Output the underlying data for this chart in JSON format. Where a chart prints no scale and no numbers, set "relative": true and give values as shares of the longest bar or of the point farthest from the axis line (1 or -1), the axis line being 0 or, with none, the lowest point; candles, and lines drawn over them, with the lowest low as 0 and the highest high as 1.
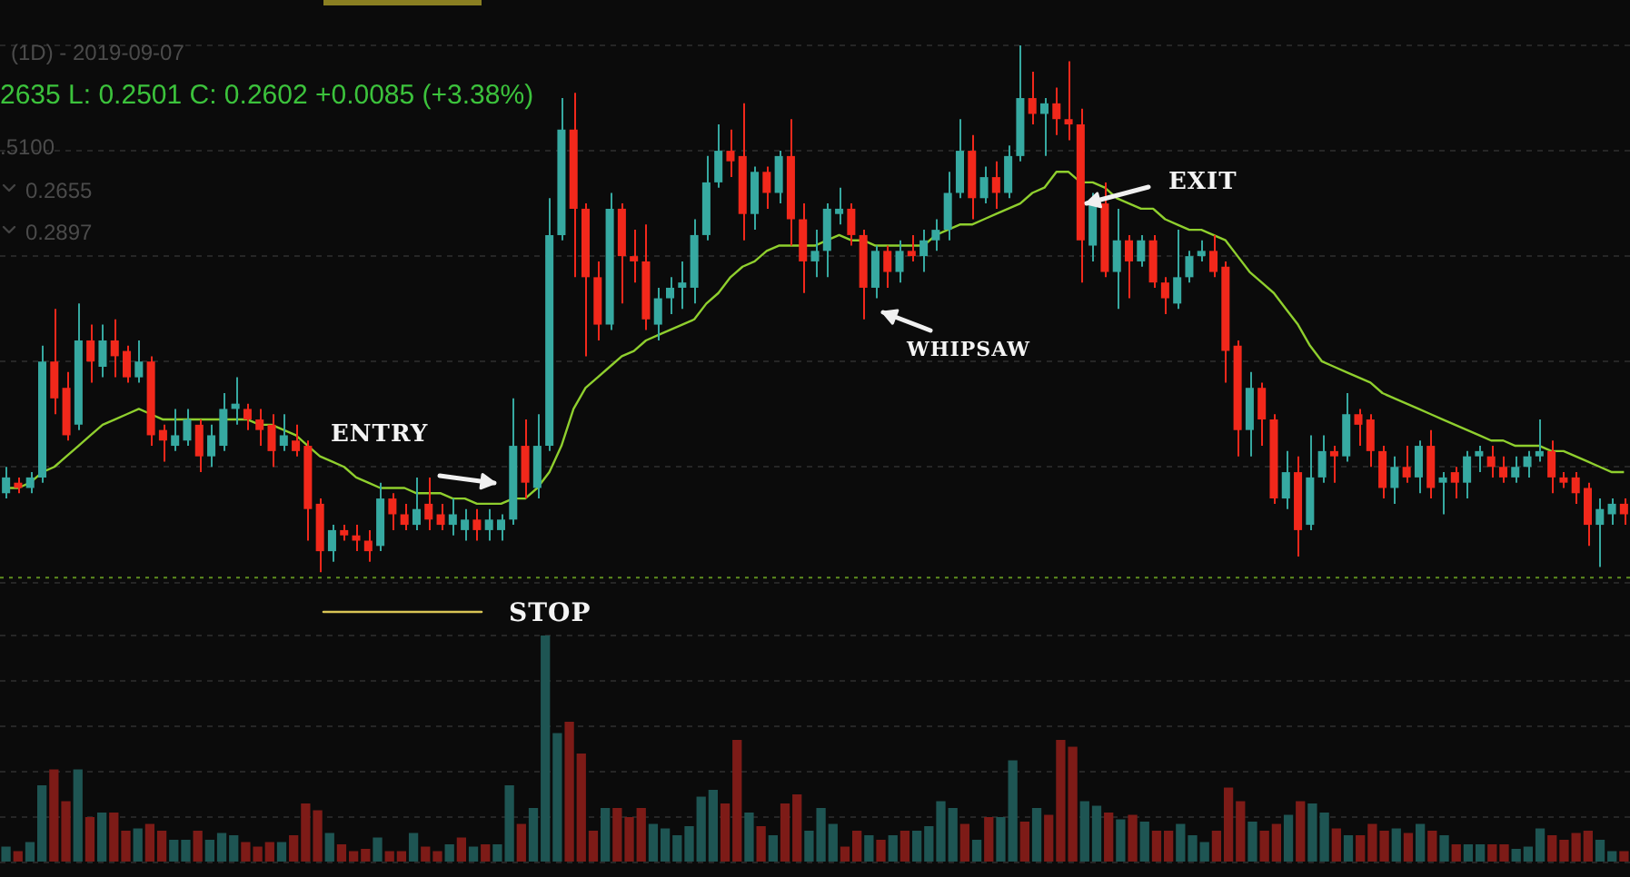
{
  "chart_data": [
    {
      "type": "candlestick",
      "title": "(1D) - 2019-09-07",
      "subtitle": "2635 L: 0.2501 C: 0.2602 +0.0085 (+3.38%)",
      "annotations": [
        ".5100",
        "0.2655",
        "0.2897",
        "ENTRY",
        "WHIPSAW",
        "EXIT",
        "STOP"
      ],
      "relative": true,
      "grid": "y",
      "tick_labels": false,
      "categories": [
        null,
        null,
        null,
        null,
        null,
        null,
        null,
        null,
        null,
        null,
        null,
        null,
        null,
        null,
        null,
        null,
        null,
        null,
        null,
        null,
        null,
        null,
        null,
        null,
        null,
        null,
        null,
        null,
        null,
        null,
        null,
        null,
        null,
        null,
        null,
        null,
        null,
        null,
        null,
        null,
        null,
        null,
        null,
        null,
        null,
        null,
        null,
        null,
        null,
        null,
        null,
        null,
        null,
        null,
        null,
        null,
        null,
        null,
        null,
        null,
        null,
        null,
        null,
        null,
        null,
        null,
        null,
        null,
        null,
        null,
        null,
        null,
        null,
        null,
        null,
        null,
        null,
        null,
        null,
        null,
        null,
        null,
        null,
        null,
        null,
        null,
        null,
        null,
        null,
        null,
        null,
        null,
        null,
        null,
        null,
        null,
        null,
        null,
        null,
        null,
        null,
        null,
        null,
        null,
        null,
        null,
        null,
        null,
        null,
        null,
        null,
        null,
        null,
        null,
        null,
        null,
        null,
        null,
        null,
        null,
        null,
        null,
        null,
        null,
        null,
        null,
        null,
        null,
        null,
        null,
        null,
        null,
        null,
        null,
        null
      ],
      "ohlc": [
        [
          0.15,
          0.2,
          0.14,
          0.18
        ],
        [
          0.17,
          0.18,
          0.15,
          0.16
        ],
        [
          0.16,
          0.19,
          0.15,
          0.18
        ],
        [
          0.18,
          0.43,
          0.17,
          0.4
        ],
        [
          0.4,
          0.5,
          0.3,
          0.33
        ],
        [
          0.35,
          0.38,
          0.25,
          0.26
        ],
        [
          0.28,
          0.51,
          0.27,
          0.44
        ],
        [
          0.44,
          0.47,
          0.36,
          0.4
        ],
        [
          0.39,
          0.47,
          0.37,
          0.44
        ],
        [
          0.44,
          0.48,
          0.37,
          0.41
        ],
        [
          0.42,
          0.43,
          0.36,
          0.37
        ],
        [
          0.37,
          0.44,
          0.36,
          0.4
        ],
        [
          0.4,
          0.41,
          0.24,
          0.26
        ],
        [
          0.27,
          0.28,
          0.21,
          0.25
        ],
        [
          0.24,
          0.31,
          0.23,
          0.26
        ],
        [
          0.25,
          0.31,
          0.24,
          0.29
        ],
        [
          0.28,
          0.29,
          0.19,
          0.22
        ],
        [
          0.22,
          0.28,
          0.2,
          0.26
        ],
        [
          0.24,
          0.34,
          0.23,
          0.31
        ],
        [
          0.31,
          0.37,
          0.28,
          0.32
        ],
        [
          0.31,
          0.32,
          0.27,
          0.29
        ],
        [
          0.29,
          0.31,
          0.24,
          0.27
        ],
        [
          0.28,
          0.3,
          0.2,
          0.23
        ],
        [
          0.24,
          0.3,
          0.23,
          0.26
        ],
        [
          0.25,
          0.28,
          0.22,
          0.23
        ],
        [
          0.24,
          0.25,
          0.06,
          0.12
        ],
        [
          0.13,
          0.14,
          0,
          0.04
        ],
        [
          0.04,
          0.09,
          0.02,
          0.08
        ],
        [
          0.08,
          0.09,
          0.06,
          0.07
        ],
        [
          0.07,
          0.09,
          0.04,
          0.06
        ],
        [
          0.06,
          0.08,
          0.02,
          0.04
        ],
        [
          0.05,
          0.17,
          0.04,
          0.14
        ],
        [
          0.14,
          0.15,
          0.08,
          0.11
        ],
        [
          0.11,
          0.13,
          0.08,
          0.09
        ],
        [
          0.09,
          0.18,
          0.08,
          0.12
        ],
        [
          0.13,
          0.18,
          0.08,
          0.1
        ],
        [
          0.11,
          0.13,
          0.08,
          0.09
        ],
        [
          0.09,
          0.14,
          0.07,
          0.11
        ],
        [
          0.08,
          0.12,
          0.06,
          0.1
        ],
        [
          0.1,
          0.12,
          0.06,
          0.08
        ],
        [
          0.08,
          0.12,
          0.06,
          0.1
        ],
        [
          0.08,
          0.11,
          0.06,
          0.1
        ],
        [
          0.1,
          0.33,
          0.09,
          0.24
        ],
        [
          0.24,
          0.29,
          0.14,
          0.17
        ],
        [
          0.16,
          0.3,
          0.14,
          0.24
        ],
        [
          0.24,
          0.71,
          0.23,
          0.64
        ],
        [
          0.64,
          0.9,
          0.63,
          0.84
        ],
        [
          0.84,
          0.91,
          0.56,
          0.69
        ],
        [
          0.69,
          0.7,
          0.41,
          0.56
        ],
        [
          0.56,
          0.59,
          0.44,
          0.47
        ],
        [
          0.47,
          0.72,
          0.46,
          0.69
        ],
        [
          0.69,
          0.7,
          0.51,
          0.6
        ],
        [
          0.6,
          0.65,
          0.55,
          0.59
        ],
        [
          0.59,
          0.66,
          0.46,
          0.48
        ],
        [
          0.47,
          0.54,
          0.44,
          0.52
        ],
        [
          0.52,
          0.56,
          0.49,
          0.54
        ],
        [
          0.54,
          0.59,
          0.5,
          0.55
        ],
        [
          0.54,
          0.67,
          0.51,
          0.64
        ],
        [
          0.64,
          0.79,
          0.63,
          0.74
        ],
        [
          0.74,
          0.85,
          0.73,
          0.8
        ],
        [
          0.8,
          0.84,
          0.75,
          0.78
        ],
        [
          0.79,
          0.89,
          0.63,
          0.68
        ],
        [
          0.68,
          0.77,
          0.65,
          0.76
        ],
        [
          0.76,
          0.77,
          0.69,
          0.72
        ],
        [
          0.72,
          0.8,
          0.7,
          0.79
        ],
        [
          0.79,
          0.86,
          0.62,
          0.67
        ],
        [
          0.67,
          0.7,
          0.53,
          0.59
        ],
        [
          0.59,
          0.65,
          0.56,
          0.61
        ],
        [
          0.61,
          0.7,
          0.56,
          0.69
        ],
        [
          0.68,
          0.73,
          0.66,
          0.69
        ],
        [
          0.69,
          0.7,
          0.62,
          0.64
        ],
        [
          0.64,
          0.65,
          0.48,
          0.54
        ],
        [
          0.54,
          0.62,
          0.52,
          0.61
        ],
        [
          0.61,
          0.62,
          0.54,
          0.57
        ],
        [
          0.57,
          0.63,
          0.55,
          0.61
        ],
        [
          0.61,
          0.64,
          0.59,
          0.6
        ],
        [
          0.6,
          0.65,
          0.57,
          0.63
        ],
        [
          0.63,
          0.67,
          0.61,
          0.65
        ],
        [
          0.65,
          0.76,
          0.63,
          0.72
        ],
        [
          0.72,
          0.86,
          0.71,
          0.8
        ],
        [
          0.8,
          0.83,
          0.67,
          0.71
        ],
        [
          0.71,
          0.77,
          0.7,
          0.75
        ],
        [
          0.75,
          0.78,
          0.69,
          0.72
        ],
        [
          0.72,
          0.81,
          0.71,
          0.79
        ],
        [
          0.79,
          1,
          0.78,
          0.9
        ],
        [
          0.9,
          0.95,
          0.85,
          0.87
        ],
        [
          0.87,
          0.9,
          0.79,
          0.89
        ],
        [
          0.89,
          0.92,
          0.83,
          0.86
        ],
        [
          0.86,
          0.97,
          0.82,
          0.85
        ],
        [
          0.85,
          0.88,
          0.55,
          0.63
        ],
        [
          0.62,
          0.72,
          0.59,
          0.7
        ],
        [
          0.7,
          0.74,
          0.56,
          0.57
        ],
        [
          0.57,
          0.69,
          0.5,
          0.63
        ],
        [
          0.63,
          0.64,
          0.52,
          0.59
        ],
        [
          0.59,
          0.64,
          0.58,
          0.63
        ],
        [
          0.63,
          0.64,
          0.54,
          0.55
        ],
        [
          0.55,
          0.56,
          0.49,
          0.52
        ],
        [
          0.51,
          0.65,
          0.5,
          0.56
        ],
        [
          0.56,
          0.61,
          0.55,
          0.6
        ],
        [
          0.6,
          0.63,
          0.59,
          0.61
        ],
        [
          0.61,
          0.64,
          0.56,
          0.57
        ],
        [
          0.58,
          0.59,
          0.36,
          0.42
        ],
        [
          0.43,
          0.44,
          0.22,
          0.27
        ],
        [
          0.27,
          0.38,
          0.22,
          0.35
        ],
        [
          0.35,
          0.36,
          0.24,
          0.29
        ],
        [
          0.29,
          0.3,
          0.13,
          0.14
        ],
        [
          0.14,
          0.23,
          0.12,
          0.19
        ],
        [
          0.19,
          0.22,
          0.03,
          0.08
        ],
        [
          0.09,
          0.26,
          0.08,
          0.18
        ],
        [
          0.18,
          0.26,
          0.17,
          0.23
        ],
        [
          0.23,
          0.24,
          0.17,
          0.22
        ],
        [
          0.22,
          0.34,
          0.21,
          0.3
        ],
        [
          0.3,
          0.31,
          0.24,
          0.28
        ],
        [
          0.29,
          0.3,
          0.2,
          0.23
        ],
        [
          0.23,
          0.24,
          0.14,
          0.16
        ],
        [
          0.16,
          0.22,
          0.13,
          0.2
        ],
        [
          0.2,
          0.24,
          0.17,
          0.18
        ],
        [
          0.18,
          0.25,
          0.15,
          0.24
        ],
        [
          0.24,
          0.27,
          0.14,
          0.16
        ],
        [
          0.17,
          0.19,
          0.11,
          0.18
        ],
        [
          0.19,
          0.2,
          0.14,
          0.17
        ],
        [
          0.17,
          0.23,
          0.14,
          0.22
        ],
        [
          0.22,
          0.24,
          0.19,
          0.23
        ],
        [
          0.22,
          0.24,
          0.18,
          0.2
        ],
        [
          0.2,
          0.22,
          0.17,
          0.18
        ],
        [
          0.18,
          0.22,
          0.17,
          0.2
        ],
        [
          0.2,
          0.23,
          0.18,
          0.22
        ],
        [
          0.22,
          0.29,
          0.21,
          0.23
        ],
        [
          0.23,
          0.25,
          0.15,
          0.18
        ],
        [
          0.18,
          0.19,
          0.16,
          0.17
        ],
        [
          0.18,
          0.19,
          0.13,
          0.15
        ],
        [
          0.16,
          0.17,
          0.05,
          0.09
        ],
        [
          0.09,
          0.14,
          0.01,
          0.12
        ],
        [
          0.11,
          0.14,
          0.09,
          0.13
        ],
        [
          0.13,
          0.14,
          0.09,
          0.11
        ]
      ],
      "colors": [
        "#36a9a1",
        "#f2281b",
        "#36a9a1",
        "#36a9a1",
        "#f2281b",
        "#f2281b",
        "#36a9a1",
        "#f2281b",
        "#36a9a1",
        "#f2281b",
        "#f2281b",
        "#36a9a1",
        "#f2281b",
        "#f2281b",
        "#36a9a1",
        "#36a9a1",
        "#f2281b",
        "#36a9a1",
        "#36a9a1",
        "#36a9a1",
        "#f2281b",
        "#f2281b",
        "#f2281b",
        "#36a9a1",
        "#f2281b",
        "#f2281b",
        "#f2281b",
        "#36a9a1",
        "#f2281b",
        "#f2281b",
        "#f2281b",
        "#36a9a1",
        "#f2281b",
        "#f2281b",
        "#36a9a1",
        "#f2281b",
        "#f2281b",
        "#36a9a1",
        "#36a9a1",
        "#f2281b",
        "#36a9a1",
        "#36a9a1",
        "#36a9a1",
        "#f2281b",
        "#36a9a1",
        "#36a9a1",
        "#36a9a1",
        "#f2281b",
        "#f2281b",
        "#f2281b",
        "#36a9a1",
        "#f2281b",
        "#f2281b",
        "#f2281b",
        "#36a9a1",
        "#36a9a1",
        "#36a9a1",
        "#36a9a1",
        "#36a9a1",
        "#36a9a1",
        "#f2281b",
        "#f2281b",
        "#36a9a1",
        "#f2281b",
        "#36a9a1",
        "#f2281b",
        "#f2281b",
        "#36a9a1",
        "#36a9a1",
        "#36a9a1",
        "#f2281b",
        "#f2281b",
        "#36a9a1",
        "#f2281b",
        "#36a9a1",
        "#f2281b",
        "#36a9a1",
        "#36a9a1",
        "#36a9a1",
        "#36a9a1",
        "#f2281b",
        "#36a9a1",
        "#f2281b",
        "#36a9a1",
        "#36a9a1",
        "#f2281b",
        "#36a9a1",
        "#f2281b",
        "#f2281b",
        "#f2281b",
        "#36a9a1",
        "#f2281b",
        "#36a9a1",
        "#f2281b",
        "#36a9a1",
        "#f2281b",
        "#f2281b",
        "#36a9a1",
        "#36a9a1",
        "#36a9a1",
        "#f2281b",
        "#f2281b",
        "#f2281b",
        "#36a9a1",
        "#f2281b",
        "#f2281b",
        "#36a9a1",
        "#f2281b",
        "#36a9a1",
        "#36a9a1",
        "#f2281b",
        "#36a9a1",
        "#f2281b",
        "#f2281b",
        "#f2281b",
        "#36a9a1",
        "#f2281b",
        "#36a9a1",
        "#f2281b",
        "#36a9a1",
        "#f2281b",
        "#36a9a1",
        "#36a9a1",
        "#f2281b",
        "#f2281b",
        "#36a9a1",
        "#36a9a1",
        "#36a9a1",
        "#f2281b",
        "#f2281b",
        "#f2281b",
        "#f2281b",
        "#36a9a1",
        "#36a9a1",
        "#f2281b"
      ],
      "series": [
        {
          "type": "line",
          "color": "#8fcf2e",
          "values": [
            0.16,
            0.16,
            0.17,
            0.19,
            0.2,
            0.22,
            0.24,
            0.26,
            0.28,
            0.29,
            0.3,
            0.31,
            0.3,
            0.29,
            0.29,
            0.29,
            0.29,
            0.29,
            0.29,
            0.29,
            0.29,
            0.28,
            0.28,
            0.27,
            0.26,
            0.24,
            0.22,
            0.21,
            0.2,
            0.18,
            0.17,
            0.16,
            0.16,
            0.16,
            0.15,
            0.15,
            0.15,
            0.14,
            0.14,
            0.13,
            0.13,
            0.13,
            0.14,
            0.14,
            0.16,
            0.19,
            0.24,
            0.31,
            0.35,
            0.37,
            0.39,
            0.41,
            0.42,
            0.44,
            0.45,
            0.46,
            0.47,
            0.48,
            0.51,
            0.53,
            0.56,
            0.58,
            0.59,
            0.61,
            0.62,
            0.62,
            0.62,
            0.62,
            0.63,
            0.64,
            0.63,
            0.63,
            0.62,
            0.62,
            0.62,
            0.62,
            0.62,
            0.64,
            0.65,
            0.66,
            0.66,
            0.67,
            0.68,
            0.69,
            0.7,
            0.72,
            0.73,
            0.76,
            0.76,
            0.74,
            0.74,
            0.73,
            0.71,
            0.7,
            0.69,
            0.69,
            0.67,
            0.66,
            0.65,
            0.65,
            0.64,
            0.63,
            0.6,
            0.57,
            0.55,
            0.53,
            0.5,
            0.47,
            0.43,
            0.4,
            0.39,
            0.38,
            0.37,
            0.36,
            0.34,
            0.33,
            0.32,
            0.31,
            0.3,
            0.29,
            0.28,
            0.27,
            0.26,
            0.25,
            0.25,
            0.24,
            0.24,
            0.24,
            0.23,
            0.23,
            0.22,
            0.21,
            0.2,
            0.19,
            0.19
          ]
        }
      ],
      "ref_lines": [
        {
          "axis": "y",
          "value": -0.01,
          "color": "#5f8f1f",
          "line_style": "dotted"
        }
      ]
    },
    {
      "type": "bar",
      "relative": true,
      "grid": "y",
      "tick_labels": false,
      "categories": [
        null,
        null,
        null,
        null,
        null,
        null,
        null,
        null,
        null,
        null,
        null,
        null,
        null,
        null,
        null,
        null,
        null,
        null,
        null,
        null,
        null,
        null,
        null,
        null,
        null,
        null,
        null,
        null,
        null,
        null,
        null,
        null,
        null,
        null,
        null,
        null,
        null,
        null,
        null,
        null,
        null,
        null,
        null,
        null,
        null,
        null,
        null,
        null,
        null,
        null,
        null,
        null,
        null,
        null,
        null,
        null,
        null,
        null,
        null,
        null,
        null,
        null,
        null,
        null,
        null,
        null,
        null,
        null,
        null,
        null,
        null,
        null,
        null,
        null,
        null,
        null,
        null,
        null,
        null,
        null,
        null,
        null,
        null,
        null,
        null,
        null,
        null,
        null,
        null,
        null,
        null,
        null,
        null,
        null,
        null,
        null,
        null,
        null,
        null,
        null,
        null,
        null,
        null,
        null,
        null,
        null,
        null,
        null,
        null,
        null,
        null,
        null,
        null,
        null,
        null,
        null,
        null,
        null,
        null,
        null,
        null,
        null,
        null,
        null,
        null,
        null,
        null,
        null,
        null,
        null,
        null,
        null,
        null,
        null,
        null,
        null
      ],
      "values": [
        0.07,
        0.05,
        0.09,
        0.34,
        0.41,
        0.27,
        0.41,
        0.2,
        0.22,
        0.22,
        0.14,
        0.15,
        0.17,
        0.14,
        0.1,
        0.1,
        0.14,
        0.1,
        0.13,
        0.12,
        0.09,
        0.07,
        0.09,
        0.09,
        0.12,
        0.26,
        0.23,
        0.13,
        0.08,
        0.05,
        0.06,
        0.11,
        0.05,
        0.05,
        0.13,
        0.07,
        0.05,
        0.08,
        0.11,
        0.07,
        0.08,
        0.08,
        0.34,
        0.17,
        0.24,
        1,
        0.57,
        0.62,
        0.48,
        0.14,
        0.24,
        0.24,
        0.2,
        0.24,
        0.17,
        0.15,
        0.12,
        0.16,
        0.29,
        0.32,
        0.26,
        0.54,
        0.22,
        0.16,
        0.12,
        0.26,
        0.3,
        0.14,
        0.24,
        0.17,
        0.07,
        0.14,
        0.12,
        0.1,
        0.12,
        0.14,
        0.14,
        0.16,
        0.27,
        0.24,
        0.17,
        0.1,
        0.2,
        0.2,
        0.45,
        0.18,
        0.24,
        0.21,
        0.54,
        0.51,
        0.27,
        0.25,
        0.22,
        0.19,
        0.21,
        0.18,
        0.14,
        0.14,
        0.17,
        0.12,
        0.09,
        0.14,
        0.33,
        0.27,
        0.18,
        0.14,
        0.17,
        0.21,
        0.27,
        0.26,
        0.22,
        0.15,
        0.12,
        0.12,
        0.17,
        0.14,
        0.15,
        0.13,
        0.17,
        0.14,
        0.12,
        0.08,
        0.08,
        0.08,
        0.08,
        0.08,
        0.06,
        0.07,
        0.15,
        0.12,
        0.1,
        0.13,
        0.14,
        0.1,
        0.05,
        0.05
      ],
      "colors": [
        "#1e5553",
        "#7d1b17",
        "#1e5553",
        "#1e5553",
        "#7d1b17",
        "#7d1b17",
        "#1e5553",
        "#7d1b17",
        "#1e5553",
        "#7d1b17",
        "#7d1b17",
        "#1e5553",
        "#7d1b17",
        "#7d1b17",
        "#1e5553",
        "#1e5553",
        "#7d1b17",
        "#1e5553",
        "#1e5553",
        "#1e5553",
        "#7d1b17",
        "#7d1b17",
        "#7d1b17",
        "#1e5553",
        "#7d1b17",
        "#7d1b17",
        "#7d1b17",
        "#1e5553",
        "#7d1b17",
        "#7d1b17",
        "#7d1b17",
        "#1e5553",
        "#7d1b17",
        "#7d1b17",
        "#1e5553",
        "#7d1b17",
        "#7d1b17",
        "#1e5553",
        "#7d1b17",
        "#1e5553",
        "#7d1b17",
        "#1e5553",
        "#1e5553",
        "#7d1b17",
        "#1e5553",
        "#1e5553",
        "#1e5553",
        "#7d1b17",
        "#7d1b17",
        "#7d1b17",
        "#1e5553",
        "#7d1b17",
        "#7d1b17",
        "#7d1b17",
        "#1e5553",
        "#1e5553",
        "#1e5553",
        "#1e5553",
        "#1e5553",
        "#1e5553",
        "#7d1b17",
        "#7d1b17",
        "#1e5553",
        "#7d1b17",
        "#1e5553",
        "#7d1b17",
        "#7d1b17",
        "#1e5553",
        "#1e5553",
        "#1e5553",
        "#7d1b17",
        "#7d1b17",
        "#1e5553",
        "#7d1b17",
        "#1e5553",
        "#7d1b17",
        "#1e5553",
        "#1e5553",
        "#1e5553",
        "#1e5553",
        "#7d1b17",
        "#1e5553",
        "#7d1b17",
        "#1e5553",
        "#1e5553",
        "#7d1b17",
        "#1e5553",
        "#7d1b17",
        "#7d1b17",
        "#7d1b17",
        "#1e5553",
        "#1e5553",
        "#7d1b17",
        "#1e5553",
        "#7d1b17",
        "#1e5553",
        "#7d1b17",
        "#7d1b17",
        "#1e5553",
        "#1e5553",
        "#1e5553",
        "#7d1b17",
        "#7d1b17",
        "#7d1b17",
        "#1e5553",
        "#7d1b17",
        "#7d1b17",
        "#1e5553",
        "#7d1b17",
        "#1e5553",
        "#1e5553",
        "#7d1b17",
        "#1e5553",
        "#7d1b17",
        "#7d1b17",
        "#7d1b17",
        "#1e5553",
        "#7d1b17",
        "#1e5553",
        "#7d1b17",
        "#1e5553",
        "#7d1b17",
        "#1e5553",
        "#1e5553",
        "#7d1b17",
        "#7d1b17",
        "#1e5553",
        "#1e5553",
        "#1e5553",
        "#7d1b17",
        "#7d1b17",
        "#7d1b17",
        "#7d1b17",
        "#1e5553",
        "#1e5553",
        "#7d1b17"
      ]
    }
  ]
}
